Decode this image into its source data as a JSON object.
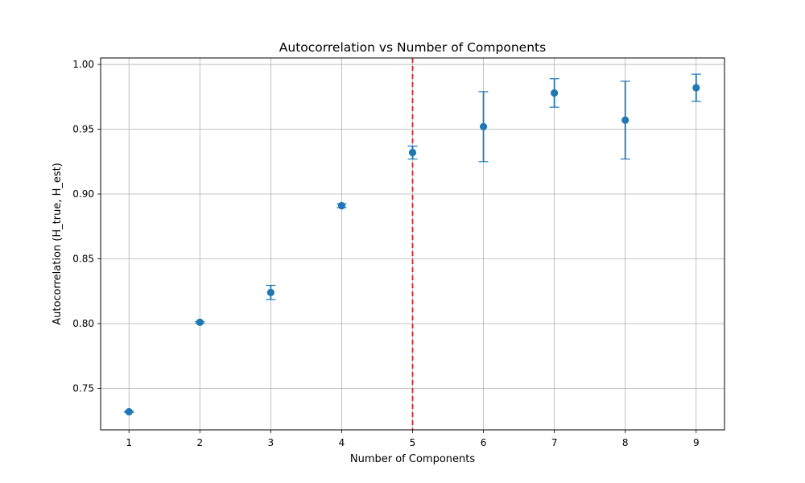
{
  "chart_data": {
    "type": "scatter",
    "title": "Autocorrelation vs Number of Components",
    "xlabel": "Number of Components",
    "ylabel": "Autocorrelation (H_true, H_est)",
    "xlim": [
      0.6,
      9.4
    ],
    "ylim": [
      0.718,
      1.005
    ],
    "x_ticks": [
      1,
      2,
      3,
      4,
      5,
      6,
      7,
      8,
      9
    ],
    "y_ticks": [
      0.75,
      0.8,
      0.85,
      0.9,
      0.95,
      1.0
    ],
    "y_tick_labels": [
      "0.75",
      "0.80",
      "0.85",
      "0.90",
      "0.95",
      "1.00"
    ],
    "grid": true,
    "series": [
      {
        "x": [
          1,
          2,
          3,
          4,
          5,
          6,
          7,
          8,
          9
        ],
        "y": [
          0.732,
          0.801,
          0.824,
          0.891,
          0.932,
          0.952,
          0.978,
          0.957,
          0.982
        ],
        "err": [
          0.0005,
          0.0006,
          0.0055,
          0.0015,
          0.005,
          0.027,
          0.011,
          0.03,
          0.0105
        ],
        "color": "#1f77b4"
      }
    ],
    "vline": {
      "x": 5,
      "color": "#d62728",
      "style": "dashed"
    }
  }
}
